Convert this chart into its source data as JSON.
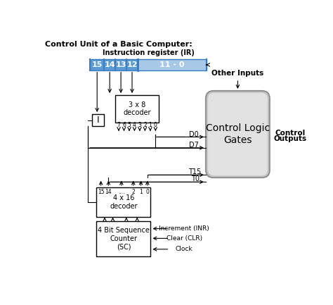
{
  "title": "Control Unit of a Basic Computer:",
  "bg_color": "#ffffff",
  "ir_label": "Instruction register (IR)",
  "ir_color_left": "#5b9bd5",
  "ir_color_right": "#a8c8e8",
  "decoder1_label": "3 x 8\ndecoder",
  "decoder2_label": "4 x 16\ndecoder",
  "sc_label": "4 Bit Sequence\nCounter\n(SC)",
  "clg_label": "Control Logic\nGates",
  "i_box_label": "I",
  "other_inputs": "Other Inputs",
  "control_outputs_line1": "Control",
  "control_outputs_line2": "Outputs",
  "d0": "D0",
  "d7": "D7",
  "t15": "T15",
  "t0": "T0",
  "sc_inputs": [
    "Increment (INR)",
    "Clear (CLR)",
    "Clock"
  ]
}
